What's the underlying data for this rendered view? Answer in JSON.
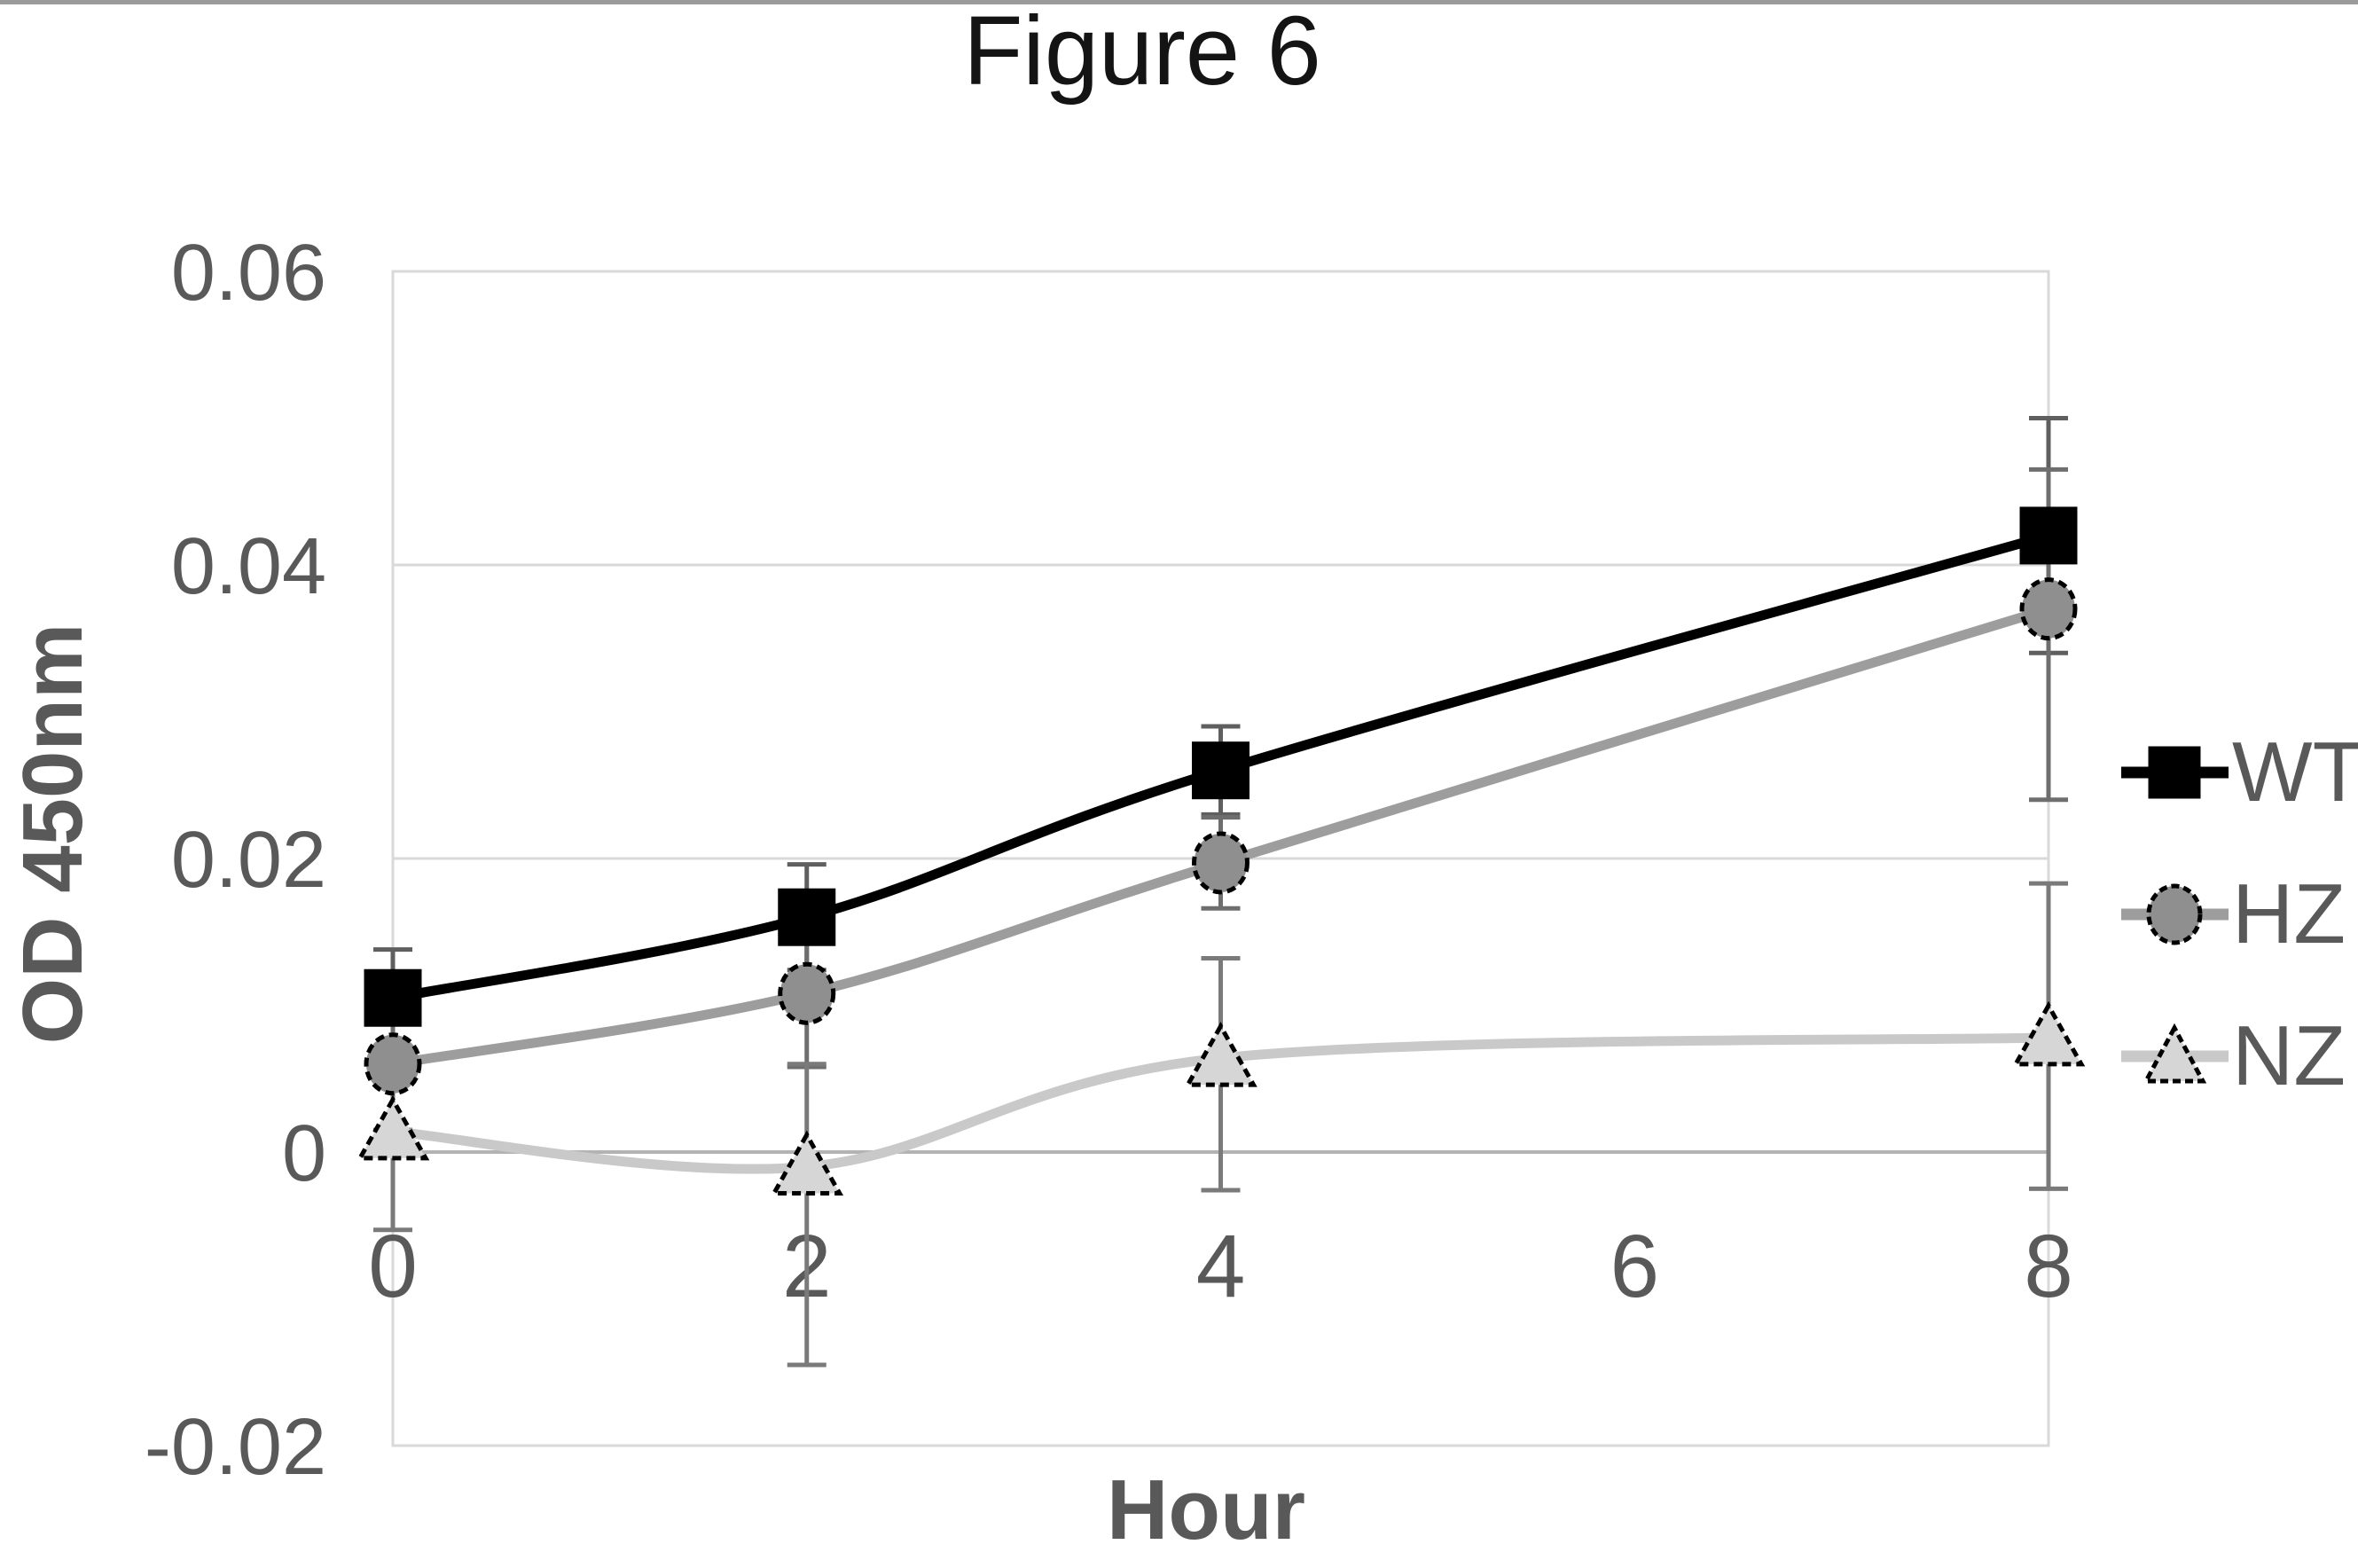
{
  "figure": {
    "title": "Figure 6"
  },
  "chart_data": {
    "type": "line",
    "title": "Figure 6",
    "xlabel": "Hour",
    "ylabel": "OD 450nm",
    "xlim": [
      0,
      8
    ],
    "ylim": [
      -0.02,
      0.06
    ],
    "grid": true,
    "legend_position": "right",
    "x_tick_values": [
      0,
      2,
      4,
      6,
      8
    ],
    "x_tick_labels": [
      "0",
      "2",
      "4",
      "6",
      "8"
    ],
    "y_tick_values": [
      0.06,
      0.04,
      0.02,
      0,
      -0.02
    ],
    "y_tick_labels": [
      "0.06",
      "0.04",
      "0.02",
      "0",
      "-0.02"
    ],
    "x": [
      0,
      2,
      4,
      8
    ],
    "series": [
      {
        "name": "WT",
        "marker": "square",
        "line_color": "#000000",
        "marker_fill": "#000000",
        "marker_edge": "#000000",
        "error_color": "#5f5f5f",
        "values": [
          0.0105,
          0.016,
          0.026,
          0.042
        ],
        "err_up": [
          0.0033,
          0.0036,
          0.003,
          0.008
        ],
        "err_down": [
          0.0033,
          0.0036,
          0.003,
          0.008
        ]
      },
      {
        "name": "HZ",
        "marker": "circle",
        "line_color": "#9d9d9d",
        "marker_fill": "#8f8f8f",
        "marker_edge": "#000000",
        "error_color": "#6e6e6e",
        "values": [
          0.006,
          0.0108,
          0.0197,
          0.037
        ],
        "err_up": [
          0.0045,
          0.005,
          0.0031,
          0.0095
        ],
        "err_down": [
          0.0045,
          0.005,
          0.0031,
          0.013
        ]
      },
      {
        "name": "NZ",
        "marker": "triangle",
        "line_color": "#c9c9c9",
        "marker_fill": "#d6d6d6",
        "marker_edge": "#000000",
        "error_color": "#7a7a7a",
        "values": [
          0.0014,
          -0.001,
          0.0064,
          0.0078
        ],
        "err_up": [
          0.0045,
          0.007,
          0.0068,
          0.0105
        ],
        "err_down": [
          0.0067,
          0.0135,
          0.009,
          0.0103
        ]
      }
    ],
    "colors": {
      "title_text": "#141414",
      "axis_text": "#595959",
      "gridline": "#d9d9d9",
      "zero_axis_line": "#b3b3b3",
      "plot_border": "#d9d9d9",
      "background": "#ffffff"
    }
  },
  "legend": {
    "items": [
      {
        "label": "WT"
      },
      {
        "label": "HZ"
      },
      {
        "label": "NZ"
      }
    ]
  }
}
